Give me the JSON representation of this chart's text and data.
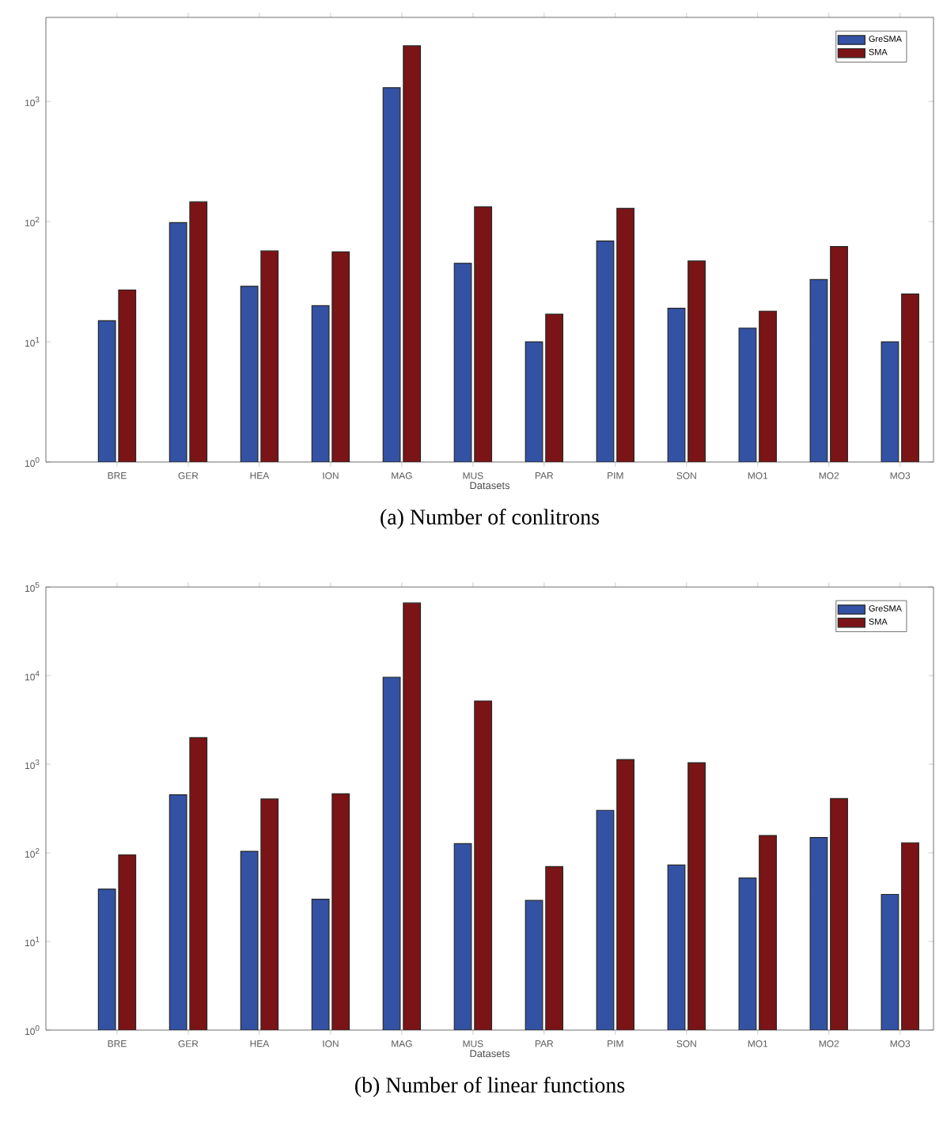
{
  "chart_data": [
    {
      "type": "bar",
      "title": "(a)  Number of conlitrons",
      "xlabel": "Datasets",
      "categories": [
        "BRE",
        "GER",
        "HEA",
        "ION",
        "MAG",
        "MUS",
        "PAR",
        "PIM",
        "SON",
        "MO1",
        "MO2",
        "MO3"
      ],
      "series": [
        {
          "name": "GreSMA",
          "color": "#3352a4",
          "values": [
            15,
            98,
            29,
            20,
            1300,
            45,
            10,
            69,
            19,
            13,
            33,
            10
          ]
        },
        {
          "name": "SMA",
          "color": "#7b1416",
          "values": [
            27,
            146,
            57,
            56,
            2900,
            133,
            17,
            129,
            47,
            18,
            62,
            25
          ]
        }
      ],
      "log": "y",
      "ylim": [
        1,
        5000
      ],
      "yticks": [
        {
          "value": 1,
          "label": "10$^{0}$"
        },
        {
          "value": 10,
          "label": "10$^{1}$"
        },
        {
          "value": 100,
          "label": "10$^{2}$"
        },
        {
          "value": 1000,
          "label": "10$^{3}$"
        }
      ],
      "legend": "top right"
    },
    {
      "type": "bar",
      "title": "(b)  Number of linear functions",
      "xlabel": "Datasets",
      "categories": [
        "BRE",
        "GER",
        "HEA",
        "ION",
        "MAG",
        "MUS",
        "PAR",
        "PIM",
        "SON",
        "MO1",
        "MO2",
        "MO3"
      ],
      "series": [
        {
          "name": "GreSMA",
          "color": "#3352a4",
          "values": [
            39,
            452,
            104,
            30,
            9600,
            127,
            29,
            302,
            73,
            52,
            149,
            34
          ]
        },
        {
          "name": "SMA",
          "color": "#7b1416",
          "values": [
            95,
            2000,
            405,
            464,
            66000,
            5180,
            70,
            1130,
            1040,
            157,
            410,
            130
          ]
        }
      ],
      "log": "y",
      "ylim": [
        1,
        100000
      ],
      "yticks": [
        {
          "value": 1,
          "label": "10$^{0}$"
        },
        {
          "value": 10,
          "label": "10$^{1}$"
        },
        {
          "value": 100,
          "label": "10$^{2}$"
        },
        {
          "value": 1000,
          "label": "10$^{3}$"
        },
        {
          "value": 10000,
          "label": "10$^{4}$"
        },
        {
          "value": 100000,
          "label": "10$^{5}$"
        }
      ],
      "legend": "top right"
    }
  ]
}
